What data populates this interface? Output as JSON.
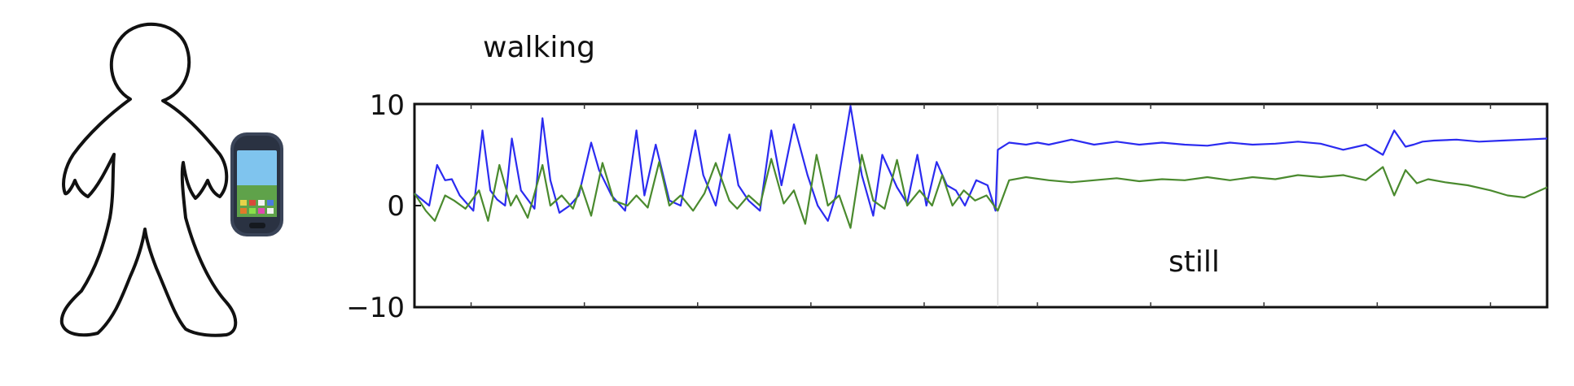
{
  "chart_data": {
    "type": "line",
    "title": "",
    "xlabel": "",
    "ylabel": "",
    "xlim": [
      0,
      100
    ],
    "ylim": [
      -10,
      10
    ],
    "yticks": [
      10,
      0,
      -10
    ],
    "ytick_labels": [
      "10",
      "0",
      "−10"
    ],
    "x_tick_count": 10,
    "grid": false,
    "legend": "none",
    "annotations": {
      "walking": "walking",
      "still": "still"
    },
    "segment_boundary_x": 51.5,
    "series": [
      {
        "color": "#2b2bf0",
        "x": [
          0,
          1.3,
          2.0,
          2.7,
          3.3,
          4.0,
          5.2,
          6.0,
          6.7,
          7.3,
          8.0,
          8.6,
          9.4,
          10.6,
          11.3,
          12.0,
          12.8,
          13.7,
          14.5,
          15.6,
          16.3,
          17.4,
          18.6,
          19.6,
          20.3,
          21.3,
          22.5,
          23.5,
          24.8,
          25.5,
          26.6,
          27.8,
          28.6,
          29.5,
          30.5,
          31.5,
          32.4,
          33.5,
          34.7,
          35.6,
          36.5,
          37.2,
          38.5,
          39.5,
          40.5,
          41.3,
          42.6,
          43.5,
          44.4,
          45.2,
          46.1,
          47.0,
          47.8,
          48.6,
          49.6,
          50.6,
          51.3,
          51.5,
          52.5,
          54.0,
          55.0,
          56.0,
          58.0,
          60.0,
          62.0,
          64.0,
          66.0,
          68.0,
          70.0,
          72.0,
          74.0,
          76.0,
          78.0,
          80.0,
          82.0,
          84.0,
          85.5,
          86.5,
          87.5,
          88.2,
          89.0,
          90.0,
          92.0,
          94.0,
          96.0,
          98.0,
          100.0
        ],
        "y": [
          1.2,
          0.0,
          4.0,
          2.5,
          2.6,
          1.0,
          -0.5,
          7.4,
          1.5,
          0.6,
          0.0,
          6.6,
          1.5,
          -0.3,
          8.6,
          2.5,
          -0.7,
          0.0,
          1.0,
          6.2,
          3.5,
          1.0,
          -0.5,
          7.4,
          1.0,
          6.0,
          0.5,
          0.0,
          7.4,
          3.0,
          0.0,
          7.0,
          2.0,
          0.5,
          -0.5,
          7.4,
          2.0,
          8.0,
          3.0,
          0.0,
          -1.5,
          1.0,
          9.8,
          3.0,
          -1.0,
          5.0,
          1.8,
          0.2,
          5.0,
          0.0,
          4.3,
          2.0,
          1.5,
          0.0,
          2.5,
          2.0,
          -0.5,
          5.5,
          6.2,
          6.0,
          6.2,
          6.0,
          6.5,
          6.0,
          6.3,
          6.0,
          6.2,
          6.0,
          5.9,
          6.2,
          6.0,
          6.1,
          6.3,
          6.1,
          5.5,
          6.0,
          5.0,
          7.4,
          5.8,
          6.0,
          6.3,
          6.4,
          6.5,
          6.3,
          6.4,
          6.5,
          6.6
        ]
      },
      {
        "color": "#4a8a2e",
        "x": [
          0,
          1.0,
          1.8,
          2.7,
          3.5,
          4.5,
          5.7,
          6.5,
          7.5,
          8.5,
          9.0,
          10.0,
          11.3,
          12.0,
          13.0,
          14.0,
          14.7,
          15.6,
          16.6,
          17.6,
          18.8,
          19.6,
          20.6,
          21.6,
          22.5,
          23.5,
          24.6,
          25.6,
          26.6,
          27.8,
          28.5,
          29.5,
          30.5,
          31.5,
          32.6,
          33.5,
          34.5,
          35.5,
          36.5,
          37.5,
          38.5,
          39.5,
          40.5,
          41.5,
          42.6,
          43.5,
          44.6,
          45.7,
          46.6,
          47.5,
          48.5,
          49.5,
          50.5,
          51.5,
          52.5,
          54.0,
          56.0,
          58.0,
          60.0,
          62.0,
          64.0,
          66.0,
          68.0,
          70.0,
          72.0,
          74.0,
          76.0,
          78.0,
          80.0,
          82.0,
          84.0,
          85.5,
          86.5,
          87.5,
          88.5,
          89.5,
          91.0,
          93.0,
          95.0,
          96.5,
          98.0,
          100.0
        ],
        "y": [
          1.2,
          -0.5,
          -1.5,
          1.0,
          0.5,
          -0.3,
          1.5,
          -1.5,
          4.0,
          0.0,
          1.0,
          -1.2,
          4.0,
          0.0,
          1.0,
          -0.3,
          2.0,
          -1.0,
          4.2,
          0.5,
          0.0,
          1.0,
          -0.2,
          4.3,
          0.0,
          1.0,
          -0.5,
          1.2,
          4.2,
          0.5,
          -0.3,
          1.0,
          0.0,
          4.6,
          0.2,
          1.5,
          -1.8,
          5.0,
          0.0,
          1.0,
          -2.2,
          5.0,
          0.5,
          -0.3,
          4.5,
          0.0,
          1.5,
          0.0,
          3.0,
          0.0,
          1.5,
          0.5,
          1.0,
          -0.5,
          2.5,
          2.8,
          2.5,
          2.3,
          2.5,
          2.7,
          2.4,
          2.6,
          2.5,
          2.8,
          2.5,
          2.8,
          2.6,
          3.0,
          2.8,
          3.0,
          2.5,
          3.8,
          1.0,
          3.5,
          2.2,
          2.6,
          2.3,
          2.0,
          1.5,
          1.0,
          0.8,
          1.8
        ]
      }
    ]
  }
}
